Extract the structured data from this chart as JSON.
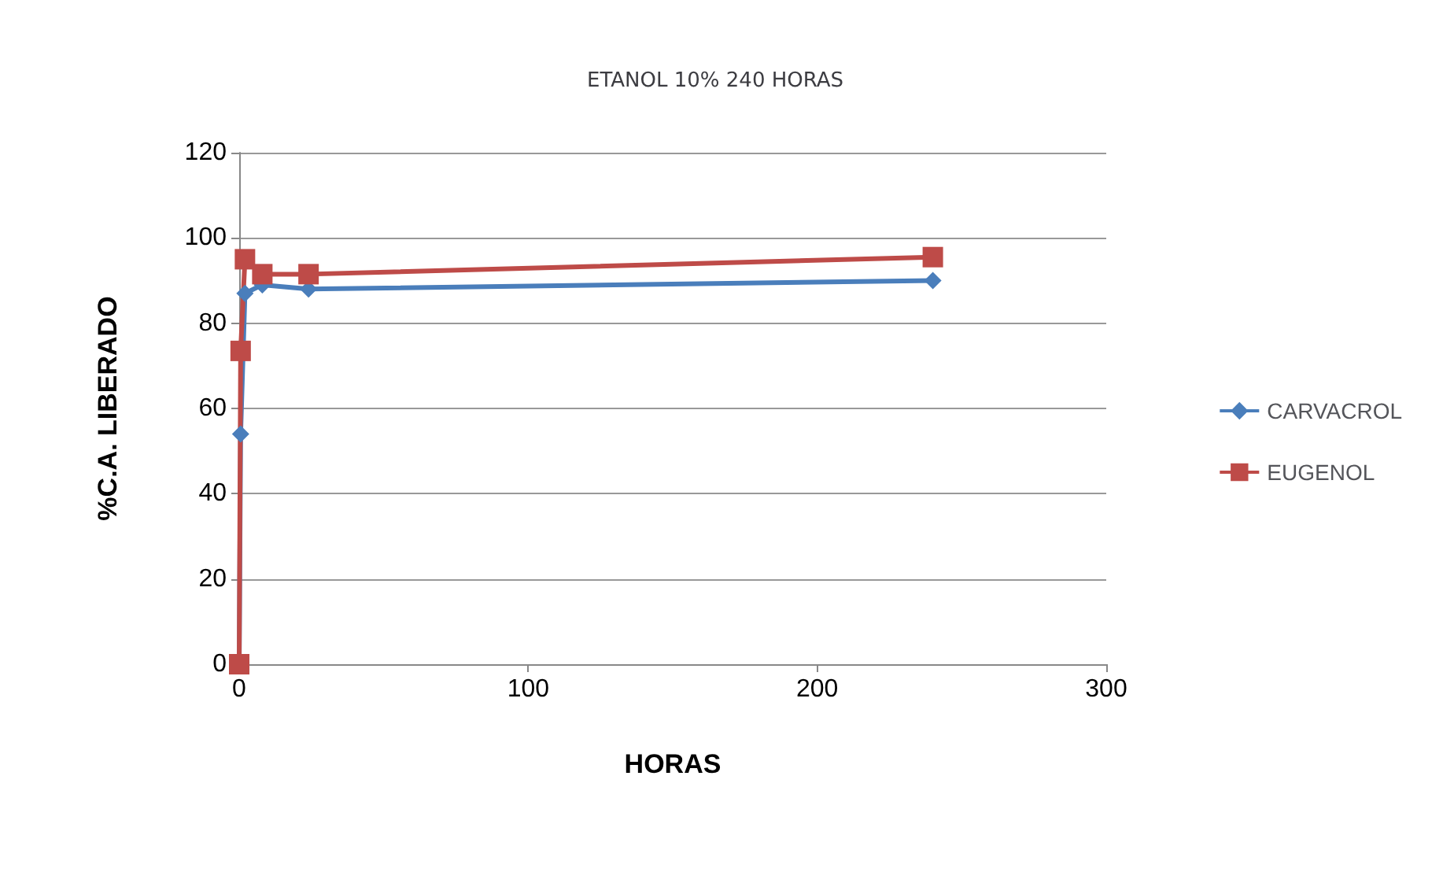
{
  "chart_data": {
    "type": "line",
    "title": "ETANOL 10% 240 HORAS",
    "xlabel": "HORAS",
    "ylabel": "%C.A. LIBERADO",
    "xlim": [
      0,
      300
    ],
    "xticks": [
      0,
      100,
      200,
      300
    ],
    "ylim": [
      0,
      120
    ],
    "yticks": [
      0,
      20,
      40,
      60,
      80,
      100,
      120
    ],
    "grid": "y",
    "legend": "right",
    "series": [
      {
        "name": "CARVACROL",
        "color": "#4a7ebb",
        "marker": "diamond",
        "x": [
          0,
          0.5,
          2,
          8,
          24,
          240
        ],
        "values": [
          0,
          54,
          87,
          89,
          88,
          90
        ]
      },
      {
        "name": "EUGENOL",
        "color": "#be4b48",
        "marker": "square",
        "x": [
          0,
          0.5,
          2,
          8,
          24,
          240
        ],
        "values": [
          0,
          73.5,
          95,
          91.5,
          91.5,
          95.5
        ]
      }
    ]
  }
}
